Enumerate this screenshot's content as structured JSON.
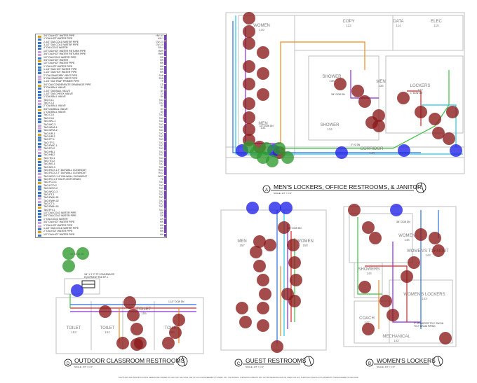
{
  "legend": {
    "rows": [
      {
        "label": "3/4\" DIA HOT WATER PIPE",
        "code": "HW-3/4"
      },
      {
        "label": "1\" DIA HOT WATER PIPE",
        "code": "HW-1"
      },
      {
        "label": "2-1/2\" DIA COLD WATER PIPE",
        "code": "CW-2.5"
      },
      {
        "label": "3-1/2\" DIA COLD WATER PIPE",
        "code": "CW-3.5"
      },
      {
        "label": "4\" DIA COLD WATER",
        "code": "CW-4"
      },
      {
        "label": "1/2\" DIA HOT WATER RETURN PIPE",
        "code": "HWR"
      },
      {
        "label": "3/4\" DIA HOT WATER RETURN PIPE",
        "code": "HWR"
      },
      {
        "label": "1/2\" DIA COLD WATER PIPE",
        "code": "CW"
      },
      {
        "label": "3/4\" DIA HOT WATER",
        "code": "HW"
      },
      {
        "label": "1/2\" DIA HOT WATER PIPE",
        "code": "HW"
      },
      {
        "label": "1\" DIA HOT WATER PIPE",
        "code": "HW"
      },
      {
        "label": "1-1/4\" DIA HOT WATER PIPE",
        "code": "HW"
      },
      {
        "label": "1-1/2\" DIA HOT WATER PIPE",
        "code": "HW"
      },
      {
        "label": "2\" DIA SANITARY VENT PIPE",
        "code": "SAN"
      },
      {
        "label": "3\" DIA SANITARY VENT PIPE",
        "code": "SAN"
      },
      {
        "label": "1-1/2\" DIA TRAP PRIMER PIPE",
        "code": "TP"
      },
      {
        "label": "3/4\" DIA CONDENSATE DRAINAGE PIPE",
        "code": "CD"
      },
      {
        "label": "3\" DIA BALL VALVE",
        "code": "BV"
      },
      {
        "label": "1-1/2\" DIA BALL VALVE",
        "code": "BV"
      },
      {
        "label": "1-1/2\" DIA CHECK VALVE",
        "code": "CV"
      },
      {
        "label": "1\" DIA BALL VALVE",
        "code": "BV"
      },
      {
        "label": "TAG:CI-1",
        "code": "TAG"
      },
      {
        "label": "TAG:CI-3",
        "code": "TAG"
      },
      {
        "label": "2\" DIA BALL VALVE",
        "code": "BV"
      },
      {
        "label": "3/4\" DIA BALL VALVE",
        "code": "BV"
      },
      {
        "label": "1\" DIA BALL VALVE",
        "code": "BV"
      },
      {
        "label": "TAG:CI-5",
        "code": "TAG"
      },
      {
        "label": "TAG:CI-6",
        "code": "TAG"
      },
      {
        "label": "TAG:WC-1",
        "code": "TAG"
      },
      {
        "label": "TAG:WC-3",
        "code": "TAG"
      },
      {
        "label": "TAG:WHA-1",
        "code": "TAG"
      },
      {
        "label": "TAG:WHA-2",
        "code": "TAG"
      },
      {
        "label": "TAG:UR-1",
        "code": "TAG"
      },
      {
        "label": "TAG:UR-2",
        "code": "TAG"
      },
      {
        "label": "TAG:FP-1",
        "code": "TAG"
      },
      {
        "label": "TAG:TP-1",
        "code": "TAG"
      },
      {
        "label": "TAG:EWC-1",
        "code": "TAG"
      },
      {
        "label": "TAG:FD-2",
        "code": "TAG"
      },
      {
        "label": "TAG:HB-1",
        "code": "TAG"
      },
      {
        "label": "TAG:HB-2",
        "code": "TAG"
      },
      {
        "label": "TAG:TD-1",
        "code": "TAG"
      },
      {
        "label": "TAG:TD-2",
        "code": "TAG"
      },
      {
        "label": "TAG:MS-1",
        "code": "TAG"
      },
      {
        "label": "TAG:MS-3",
        "code": "TAG"
      },
      {
        "label": "TAG:RCO-1 2\" DIA WALL CLEANOUT",
        "code": "RCO"
      },
      {
        "label": "TAG:RCO-2 2\" DIA WALL CLEANOUT",
        "code": "RCO"
      },
      {
        "label": "TAG:WCO-1 4\" DIA WALL CLEANOUT",
        "code": "WCO"
      },
      {
        "label": "TAG:FD-1 3\" DIA FLOOR DRAIN",
        "code": "FD"
      },
      {
        "label": "TAG:FCO-1",
        "code": "TAG"
      },
      {
        "label": "TAG:FCO-2",
        "code": "TAG"
      },
      {
        "label": "TAG:WCO-2",
        "code": "TAG"
      },
      {
        "label": "TAG:WCO-3",
        "code": "TAG"
      },
      {
        "label": "TAG:FT-1",
        "code": "TAG"
      },
      {
        "label": "TAG:EWH-01",
        "code": "TAG"
      },
      {
        "label": "TAG:EWH-02",
        "code": "TAG"
      },
      {
        "label": "TAG:CT-1",
        "code": "TAG"
      },
      {
        "label": "TAG:RWH-01",
        "code": "TAG"
      },
      {
        "label": "TAG:FH-1",
        "code": "TAG"
      },
      {
        "label": "1/2\" DIA COLD WATER PIPE",
        "code": "CW"
      },
      {
        "label": "3/4\" DIA COLD WATER PIPE",
        "code": "CW"
      },
      {
        "label": "1\" DIA COLD WATER",
        "code": "CW"
      },
      {
        "label": "3/4\" DIA HOT WATER PIPE",
        "code": "HW"
      },
      {
        "label": "1\" DIA HOT WATER PIPE",
        "code": "HW"
      },
      {
        "label": "1-1/2\" DIA COLD WATER PIPE",
        "code": "CW"
      },
      {
        "label": "2\" DIA HOT WATER PIPE",
        "code": "HW"
      },
      {
        "label": "1/2\" DIA HOT WATER PIPE",
        "code": "HW"
      }
    ]
  },
  "rooms": {
    "women130": {
      "name": "WOMEN",
      "num": "130"
    },
    "copy": {
      "name": "COPY",
      "num": "113"
    },
    "data": {
      "name": "DATA",
      "num": "114"
    },
    "elec": {
      "name": "ELEC",
      "num": "115"
    },
    "shower136": {
      "name": "SHOWER",
      "num": "136"
    },
    "men136": {
      "name": "MEN",
      "num": "135"
    },
    "lockers": {
      "name": "LOCKERS",
      "num": "137"
    },
    "men131": {
      "name": "MEN",
      "num": "131"
    },
    "shower134": {
      "name": "SHOWER",
      "num": "134"
    },
    "corridor": {
      "name": "CORRIDOR",
      "num": "145"
    },
    "men152": {
      "name": "MEN",
      "num": "157"
    },
    "women_guest": {
      "name": "WOMEN",
      "num": "158"
    },
    "women145": {
      "name": "WOMEN",
      "num": "145"
    },
    "turnout": {
      "name": "WOMEN'S TURNOUT",
      "num": "143"
    },
    "showers_w": {
      "name": "SHOWERS",
      "num": "144"
    },
    "womens_lockers_rm": {
      "name": "WOMEN'S LOCKERS",
      "num": "143"
    },
    "coach": {
      "name": "COACH",
      "num": "147"
    },
    "mechanical": {
      "name": "MECHANICAL",
      "num": "142"
    },
    "toilet153": {
      "name": "TOILET",
      "num": "153"
    },
    "toilet154": {
      "name": "TOILET",
      "num": "154"
    },
    "toilet155": {
      "name": "TOILET",
      "num": "155"
    },
    "toilet156": {
      "name": "TOILET",
      "num": "156"
    }
  },
  "titles": {
    "a": {
      "letter": "A",
      "text": "MEN'S LOCKERS, OFFICE RESTROOMS, & JANITOR",
      "scale": "SCALE: 1/4\" = 1'-0\""
    },
    "b": {
      "letter": "B",
      "text": "WOMEN'S LOCKERS",
      "scale": "SCALE: 1/4\" = 1'-0\""
    },
    "c": {
      "letter": "C",
      "text": "GUEST RESTROOMS",
      "scale": "SCALE: 1/4\" = 1'-0\""
    },
    "d": {
      "letter": "D",
      "text": "OUTDOOR CLASSROOM RESTROOMS",
      "scale": "SCALE: 1/4\" = 1'-0\""
    }
  },
  "notes": {
    "n1": "3/4\" DCW DN",
    "n2": "1\" DCW DN",
    "n3": "1/2\" DCW DN",
    "n4": "2\" V2 DN",
    "n5": "3/4\" DCW DN",
    "n6": "3/4\" X 1\" P-TP CONDENSATE",
    "n7": "EQUIPMENT PAD EP-1",
    "n8": "3/4\" DCW DN",
    "n9": "3\" STANDPIPE TO 4\" SW DN",
    "n10": "TO 2\" DRAIN PIPING",
    "n11": "3/4\" DCW DN",
    "n12": "1-1/2\" DCW DN"
  },
  "footer": "THE PLANS AND SPECIFICATIONS HEREIN ARE OWNED BY AND FOR THE SOLE USE OF ACCO ENGINEERED SYSTEMS, INC. CALIFORNIA. THESE DOCUMENTS MAY NOT BE REPRODUCED OR USED FOR ANY PURPOSE UNLESS AUTHORIZED BY THE ENGINEER OF RECORD.",
  "colors": {
    "marker_red": "#8b1a1a",
    "marker_blue": "#2020e8",
    "marker_green": "#2e9a2e",
    "pipe_blue": "#2a6fd8",
    "pipe_cyan": "#22c6e0",
    "pipe_purple": "#8a2ad8",
    "pipe_orange": "#f08a1a",
    "pipe_red": "#e02020",
    "pipe_green": "#3cc040",
    "wall": "#bfbfbf"
  }
}
